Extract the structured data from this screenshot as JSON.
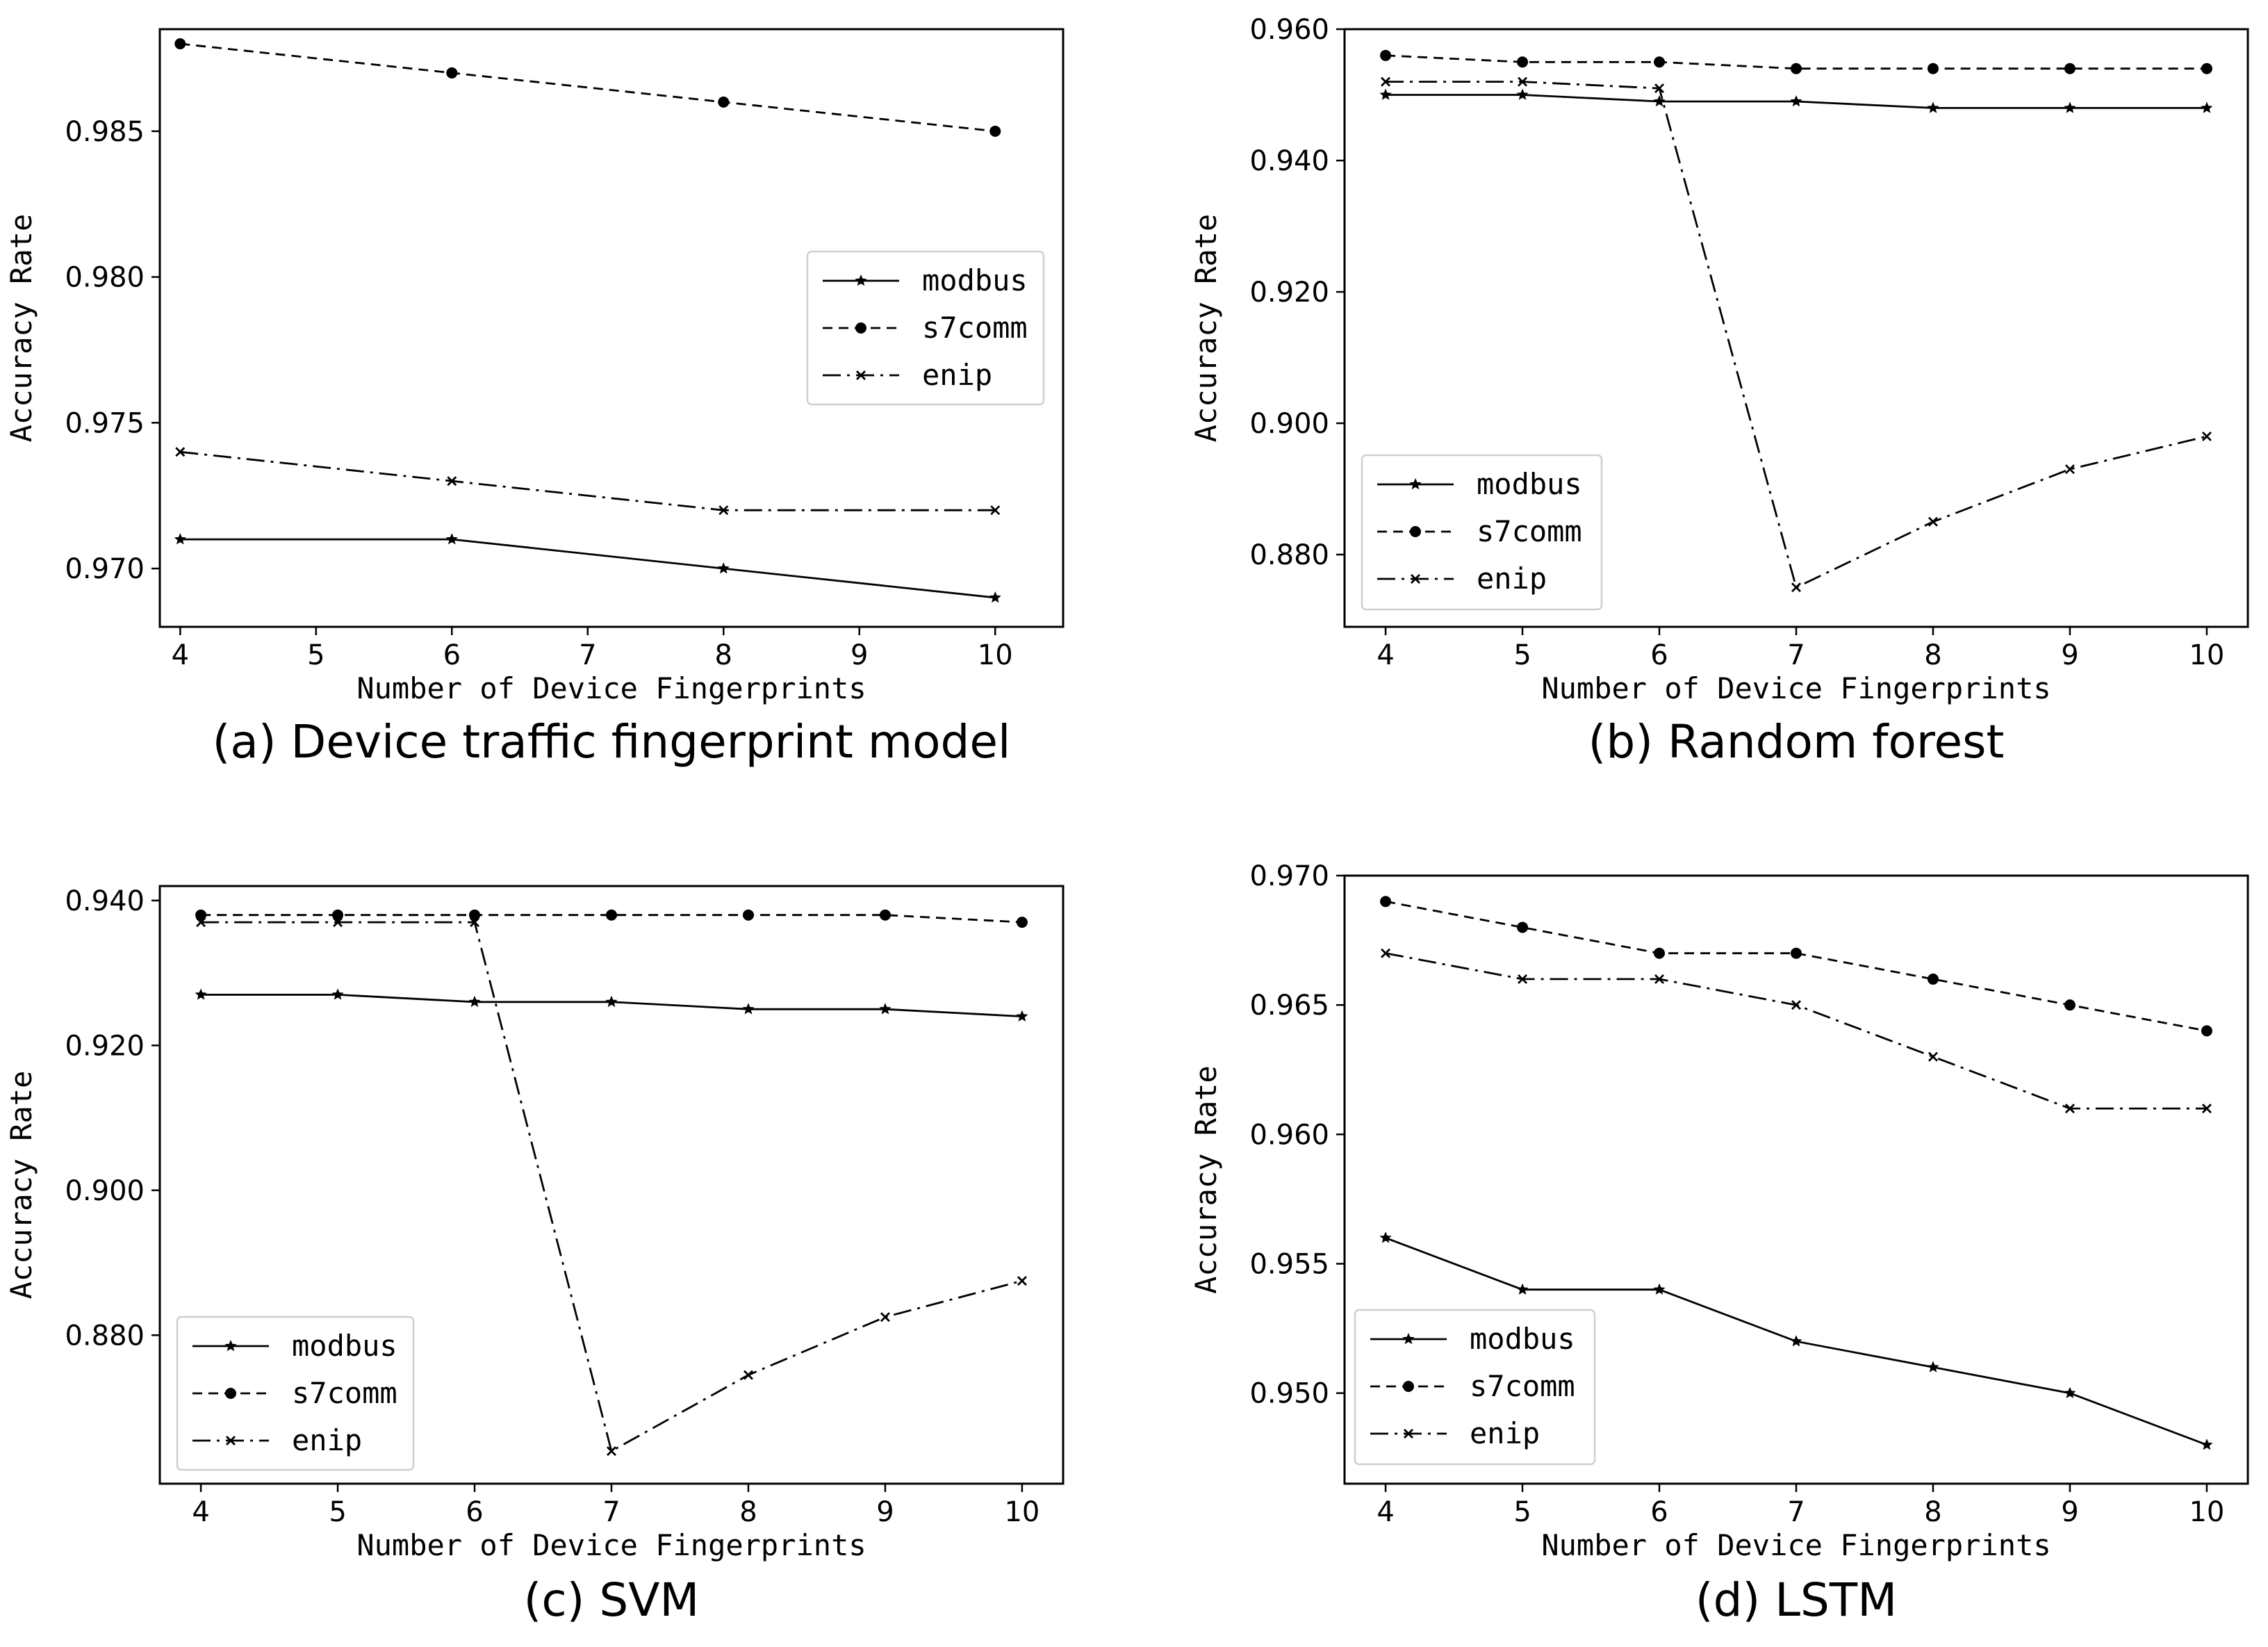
{
  "figure": {
    "styles": {
      "modbus": {
        "dash": "",
        "marker": "star"
      },
      "s7comm": {
        "dash": "14,9",
        "marker": "dot"
      },
      "enip": {
        "dash": "26,9,4,9",
        "marker": "x"
      }
    },
    "color": "#000000"
  },
  "chart_data": [
    {
      "type": "line",
      "title": "(a) Device traffic fingerprint model",
      "xlabel": "Number of Device Fingerprints",
      "ylabel": "Accuracy Rate",
      "xlim": [
        3.85,
        10.5
      ],
      "ylim": [
        0.968,
        0.9885
      ],
      "xticks": [
        4,
        5,
        6,
        7,
        8,
        9,
        10
      ],
      "xtick_labels": [
        "4",
        "5",
        "6",
        "7",
        "8",
        "9",
        "10"
      ],
      "yticks": [
        0.97,
        0.975,
        0.98,
        0.985
      ],
      "ytick_labels": [
        "0.970",
        "0.975",
        "0.980",
        "0.985"
      ],
      "legend": "center-right",
      "series": [
        {
          "name": "modbus",
          "x": [
            4,
            6,
            8,
            10
          ],
          "values": [
            0.971,
            0.971,
            0.97,
            0.969
          ]
        },
        {
          "name": "s7comm",
          "x": [
            4,
            6,
            8,
            10
          ],
          "values": [
            0.988,
            0.987,
            0.986,
            0.985
          ]
        },
        {
          "name": "enip",
          "x": [
            4,
            6,
            8,
            10
          ],
          "values": [
            0.974,
            0.973,
            0.972,
            0.972
          ]
        }
      ]
    },
    {
      "type": "line",
      "title": "(b) Random forest",
      "xlabel": "Number of Device Fingerprints",
      "ylabel": "Accuracy Rate",
      "xlim": [
        3.7,
        10.3
      ],
      "ylim": [
        0.869,
        0.96
      ],
      "xticks": [
        4,
        5,
        6,
        7,
        8,
        9,
        10
      ],
      "xtick_labels": [
        "4",
        "5",
        "6",
        "7",
        "8",
        "9",
        "10"
      ],
      "yticks": [
        0.88,
        0.9,
        0.92,
        0.94,
        0.96
      ],
      "ytick_labels": [
        "0.880",
        "0.900",
        "0.920",
        "0.940",
        "0.960"
      ],
      "legend": "lower-left",
      "series": [
        {
          "name": "modbus",
          "x": [
            4,
            5,
            6,
            7,
            8,
            9,
            10
          ],
          "values": [
            0.95,
            0.95,
            0.949,
            0.949,
            0.948,
            0.948,
            0.948
          ]
        },
        {
          "name": "s7comm",
          "x": [
            4,
            5,
            6,
            7,
            8,
            9,
            10
          ],
          "values": [
            0.956,
            0.955,
            0.955,
            0.954,
            0.954,
            0.954,
            0.954
          ]
        },
        {
          "name": "enip",
          "x": [
            4,
            5,
            6,
            7,
            8,
            9,
            10
          ],
          "values": [
            0.952,
            0.952,
            0.951,
            0.875,
            0.885,
            0.893,
            0.898
          ]
        }
      ]
    },
    {
      "type": "line",
      "title": "(c) SVM",
      "xlabel": "Number of Device Fingerprints",
      "ylabel": "Accuracy Rate",
      "xlim": [
        3.7,
        10.3
      ],
      "ylim": [
        0.8595,
        0.942
      ],
      "xticks": [
        4,
        5,
        6,
        7,
        8,
        9,
        10
      ],
      "xtick_labels": [
        "4",
        "5",
        "6",
        "7",
        "8",
        "9",
        "10"
      ],
      "yticks": [
        0.88,
        0.9,
        0.92,
        0.94
      ],
      "ytick_labels": [
        "0.880",
        "0.900",
        "0.920",
        "0.940"
      ],
      "legend": "lower-left",
      "series": [
        {
          "name": "modbus",
          "x": [
            4,
            5,
            6,
            7,
            8,
            9,
            10
          ],
          "values": [
            0.927,
            0.927,
            0.926,
            0.926,
            0.925,
            0.925,
            0.924
          ]
        },
        {
          "name": "s7comm",
          "x": [
            4,
            5,
            6,
            7,
            8,
            9,
            10
          ],
          "values": [
            0.938,
            0.938,
            0.938,
            0.938,
            0.938,
            0.938,
            0.937
          ]
        },
        {
          "name": "enip",
          "x": [
            4,
            5,
            6,
            7,
            8,
            9,
            10
          ],
          "values": [
            0.937,
            0.937,
            0.937,
            0.864,
            0.8745,
            0.8825,
            0.8875
          ]
        }
      ]
    },
    {
      "type": "line",
      "title": "(d) LSTM",
      "xlabel": "Number of Device Fingerprints",
      "ylabel": "Accuracy Rate",
      "xlim": [
        3.7,
        10.3
      ],
      "ylim": [
        0.9465,
        0.97
      ],
      "xticks": [
        4,
        5,
        6,
        7,
        8,
        9,
        10
      ],
      "xtick_labels": [
        "4",
        "5",
        "6",
        "7",
        "8",
        "9",
        "10"
      ],
      "yticks": [
        0.95,
        0.955,
        0.96,
        0.965,
        0.97
      ],
      "ytick_labels": [
        "0.950",
        "0.955",
        "0.960",
        "0.965",
        "0.970"
      ],
      "legend": "lower-left",
      "series": [
        {
          "name": "modbus",
          "x": [
            4,
            5,
            6,
            7,
            8,
            9,
            10
          ],
          "values": [
            0.956,
            0.954,
            0.954,
            0.952,
            0.951,
            0.95,
            0.948
          ]
        },
        {
          "name": "s7comm",
          "x": [
            4,
            5,
            6,
            7,
            8,
            9,
            10
          ],
          "values": [
            0.969,
            0.968,
            0.967,
            0.967,
            0.966,
            0.965,
            0.964
          ]
        },
        {
          "name": "enip",
          "x": [
            4,
            5,
            6,
            7,
            8,
            9,
            10
          ],
          "values": [
            0.967,
            0.966,
            0.966,
            0.965,
            0.963,
            0.961,
            0.961
          ]
        }
      ]
    }
  ]
}
